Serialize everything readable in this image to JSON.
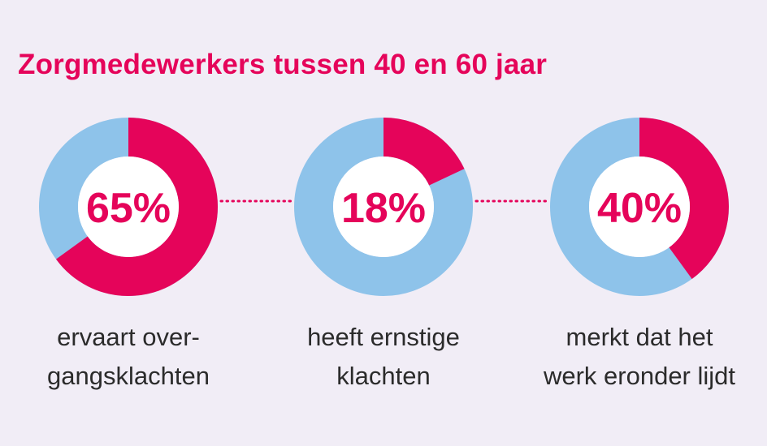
{
  "chart_data": {
    "type": "pie",
    "title": "Zorgmedewerkers tussen 40 en 60 jaar",
    "colors": {
      "highlight": "#e5045a",
      "remainder": "#8ec3ea",
      "background": "#f1edf6"
    },
    "items": [
      {
        "value": 65,
        "label": "65%",
        "caption": [
          "ervaart over-",
          "gangsklachten"
        ]
      },
      {
        "value": 18,
        "label": "18%",
        "caption": [
          "heeft ernstige",
          "klachten"
        ]
      },
      {
        "value": 40,
        "label": "40%",
        "caption": [
          "merkt dat het",
          "werk eronder lijdt"
        ]
      }
    ]
  }
}
